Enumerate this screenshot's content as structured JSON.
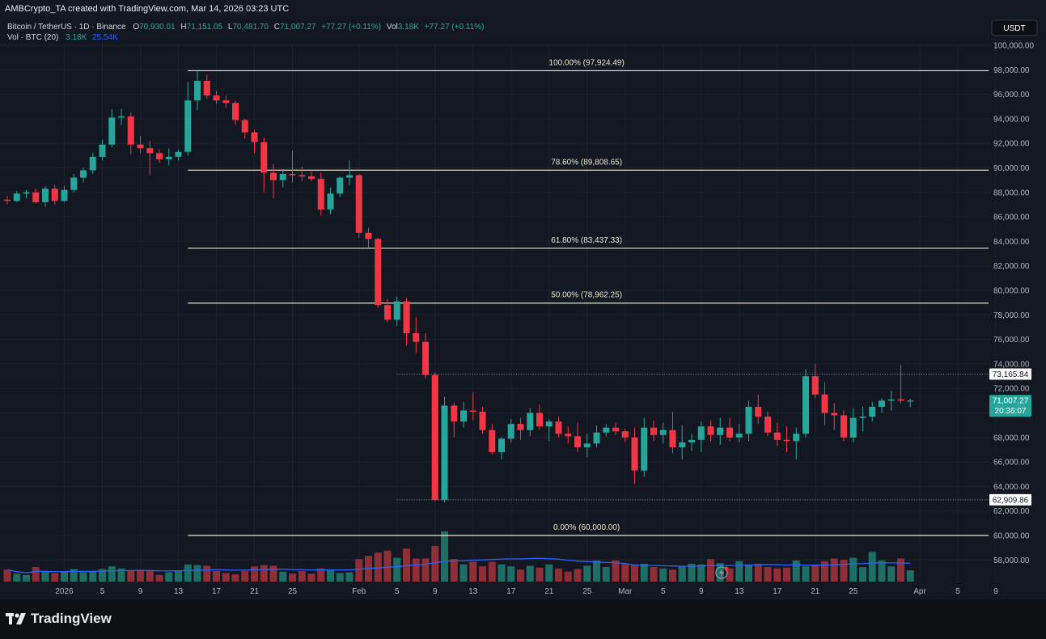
{
  "header": {
    "caption": "AMBCrypto_TA created with TradingView.com, Mar 14, 2026 03:23 UTC"
  },
  "legend": {
    "symbol": "Bitcoin / TetherUS · 1D · Binance",
    "open_label": "O",
    "open": "70,930.01",
    "high_label": "H",
    "high": "71,151.05",
    "low_label": "L",
    "low": "70,481.70",
    "close_label": "C",
    "close": "71,007.27",
    "change": "+77.27 (+0.11%)",
    "vol_label": "Vol",
    "vol": "3.18K",
    "vol_change": "+77.27 (+0.11%)",
    "vol_row_name": "Vol · BTC (20)",
    "vol_row_v1": "3.18K",
    "vol_row_v2": "25.54K"
  },
  "currency_button": "USDT",
  "brand": "TradingView",
  "colors": {
    "up": "#26a69a",
    "down": "#f23645",
    "vol_up": "#1f6e66",
    "vol_down": "#8e2f38",
    "fib": "#e8e4c9",
    "ma": "#2962ff",
    "bg": "#131722",
    "grid": "#1e222d"
  },
  "price_badges": {
    "high_marker": "73,165.84",
    "last_price": "71,007.27",
    "countdown": "20:36:07",
    "low_marker": "62,909.86"
  },
  "chart_data": {
    "type": "candlestick",
    "y_range": [
      56000,
      101000
    ],
    "y_ticks": [
      58000,
      60000,
      62000,
      64000,
      66000,
      68000,
      70000,
      72000,
      74000,
      76000,
      78000,
      80000,
      82000,
      84000,
      86000,
      88000,
      90000,
      92000,
      94000,
      96000,
      98000,
      100000
    ],
    "y_tick_labels": [
      "58,000.00",
      "60,000.00",
      "62,000.00",
      "64,000.00",
      "66,000.00",
      "68,000.00",
      "70,000.00",
      "72,000.00",
      "74,000.00",
      "76,000.00",
      "78,000.00",
      "80,000.00",
      "82,000.00",
      "84,000.00",
      "86,000.00",
      "88,000.00",
      "90,000.00",
      "92,000.00",
      "94,000.00",
      "96,000.00",
      "98,000.00",
      "100,000.00"
    ],
    "x_start_date": "2025-12-26",
    "x_days": 96,
    "x_ticks": [
      {
        "day": 6,
        "label": "2026"
      },
      {
        "day": 10,
        "label": "5"
      },
      {
        "day": 14,
        "label": "9"
      },
      {
        "day": 18,
        "label": "13"
      },
      {
        "day": 22,
        "label": "17"
      },
      {
        "day": 26,
        "label": "21"
      },
      {
        "day": 30,
        "label": "25"
      },
      {
        "day": 37,
        "label": "Feb"
      },
      {
        "day": 41,
        "label": "5"
      },
      {
        "day": 45,
        "label": "9"
      },
      {
        "day": 49,
        "label": "13"
      },
      {
        "day": 53,
        "label": "17"
      },
      {
        "day": 57,
        "label": "21"
      },
      {
        "day": 61,
        "label": "25"
      },
      {
        "day": 65,
        "label": "Mar"
      },
      {
        "day": 69,
        "label": "5"
      },
      {
        "day": 73,
        "label": "9"
      },
      {
        "day": 77,
        "label": "13"
      },
      {
        "day": 81,
        "label": "17"
      },
      {
        "day": 85,
        "label": "21"
      },
      {
        "day": 89,
        "label": "25"
      },
      {
        "day": 96,
        "label": "Apr"
      },
      {
        "day": 100,
        "label": "5"
      },
      {
        "day": 104,
        "label": "9"
      }
    ],
    "fib_levels": [
      {
        "label": "100.00% (97,924.49)",
        "price": 97924.49
      },
      {
        "label": "78.60% (89,808.65)",
        "price": 89808.65
      },
      {
        "label": "61.80% (83,437.33)",
        "price": 83437.33
      },
      {
        "label": "50.00% (78,962.25)",
        "price": 78962.25
      },
      {
        "label": "0.00% (60,000.00)",
        "price": 60000
      }
    ],
    "fib_start_day": 19,
    "high_marker_price": 73165.84,
    "low_marker_price": 62909.86,
    "marker_start_day": 41,
    "vol_max": 7.6,
    "candles": [
      [
        87400,
        87700,
        87000,
        87300,
        1.8
      ],
      [
        87300,
        88100,
        87200,
        87900,
        1.2
      ],
      [
        87900,
        88200,
        87500,
        88000,
        1.0
      ],
      [
        88000,
        88300,
        87100,
        87200,
        2.2
      ],
      [
        87200,
        88500,
        86800,
        88300,
        1.6
      ],
      [
        88300,
        88600,
        87000,
        87300,
        1.3
      ],
      [
        87300,
        88500,
        87200,
        88200,
        1.5
      ],
      [
        88200,
        89500,
        88000,
        89200,
        1.9
      ],
      [
        89200,
        90000,
        88800,
        89800,
        1.4
      ],
      [
        89800,
        91200,
        89500,
        90900,
        1.6
      ],
      [
        90900,
        92300,
        90600,
        91900,
        1.9
      ],
      [
        91900,
        94800,
        91700,
        94100,
        2.3
      ],
      [
        94100,
        94800,
        93500,
        94200,
        2.0
      ],
      [
        94200,
        94500,
        91100,
        91900,
        1.6
      ],
      [
        91900,
        92600,
        91200,
        91600,
        1.8
      ],
      [
        91600,
        92200,
        89400,
        91200,
        1.7
      ],
      [
        91200,
        91500,
        90400,
        90700,
        1.0
      ],
      [
        90700,
        91600,
        90200,
        90900,
        1.4
      ],
      [
        90900,
        91500,
        90600,
        91300,
        1.7
      ],
      [
        91300,
        97000,
        91000,
        95500,
        2.6
      ],
      [
        95500,
        98000,
        94700,
        97100,
        2.5
      ],
      [
        97100,
        97600,
        95600,
        95900,
        2.4
      ],
      [
        95900,
        96300,
        95200,
        95500,
        1.6
      ],
      [
        95500,
        95900,
        94900,
        95300,
        1.3
      ],
      [
        95300,
        95500,
        93500,
        93900,
        1.1
      ],
      [
        93900,
        94000,
        92400,
        92900,
        1.6
      ],
      [
        92900,
        93100,
        91200,
        92100,
        2.3
      ],
      [
        92100,
        92500,
        88000,
        89600,
        2.5
      ],
      [
        89600,
        90300,
        87500,
        89000,
        2.4
      ],
      [
        89000,
        89900,
        88400,
        89500,
        1.5
      ],
      [
        89500,
        91400,
        88800,
        89400,
        1.2
      ],
      [
        89400,
        90100,
        88900,
        89300,
        1.6
      ],
      [
        89300,
        89700,
        88900,
        89100,
        1.2
      ],
      [
        89100,
        89600,
        86100,
        86600,
        2.0
      ],
      [
        86600,
        88400,
        86200,
        87900,
        1.8
      ],
      [
        87900,
        89300,
        87600,
        89200,
        1.3
      ],
      [
        89200,
        90600,
        88600,
        89400,
        1.4
      ],
      [
        89400,
        89500,
        84300,
        84700,
        3.4
      ],
      [
        84700,
        85100,
        83500,
        84200,
        3.9
      ],
      [
        84200,
        84300,
        78600,
        78800,
        4.4
      ],
      [
        78800,
        79300,
        77400,
        77600,
        4.7
      ],
      [
        77600,
        79500,
        77100,
        79100,
        3.6
      ],
      [
        79100,
        79400,
        75500,
        76500,
        5.0
      ],
      [
        76500,
        77800,
        74900,
        75800,
        3.5
      ],
      [
        75800,
        76500,
        72800,
        73100,
        3.5
      ],
      [
        73100,
        73300,
        62800,
        62900,
        5.4
      ],
      [
        62900,
        71300,
        62700,
        70600,
        7.6
      ],
      [
        70600,
        70800,
        68000,
        69300,
        3.4
      ],
      [
        69300,
        70900,
        68800,
        70200,
        2.6
      ],
      [
        70200,
        71700,
        69400,
        70100,
        3.0
      ],
      [
        70100,
        70500,
        68300,
        68600,
        2.3
      ],
      [
        68600,
        69100,
        66600,
        66800,
        3.0
      ],
      [
        66800,
        68000,
        66200,
        67900,
        2.6
      ],
      [
        67900,
        69500,
        67600,
        69100,
        2.3
      ],
      [
        69100,
        69600,
        67800,
        68600,
        1.8
      ],
      [
        68600,
        70400,
        68100,
        70000,
        2.4
      ],
      [
        70000,
        70700,
        68600,
        68900,
        2.1
      ],
      [
        68900,
        69500,
        67700,
        69300,
        2.6
      ],
      [
        69300,
        69700,
        68000,
        68300,
        2.0
      ],
      [
        68300,
        68900,
        67500,
        68100,
        1.5
      ],
      [
        68100,
        69200,
        66800,
        67200,
        1.9
      ],
      [
        67200,
        68300,
        66400,
        67500,
        2.4
      ],
      [
        67500,
        69000,
        67200,
        68400,
        3.2
      ],
      [
        68400,
        69100,
        68100,
        68800,
        2.2
      ],
      [
        68800,
        69200,
        68200,
        68500,
        3.2
      ],
      [
        68500,
        68700,
        67600,
        68000,
        2.7
      ],
      [
        68000,
        68800,
        64200,
        65300,
        2.6
      ],
      [
        65300,
        69600,
        64800,
        68800,
        2.7
      ],
      [
        68800,
        69400,
        67700,
        68200,
        2.2
      ],
      [
        68200,
        69200,
        67500,
        68600,
        2.0
      ],
      [
        68600,
        70100,
        66700,
        67200,
        1.8
      ],
      [
        67200,
        69000,
        66200,
        67600,
        2.3
      ],
      [
        67600,
        68300,
        66900,
        67800,
        2.7
      ],
      [
        67800,
        69300,
        66800,
        68900,
        2.6
      ],
      [
        68900,
        69400,
        67700,
        68200,
        3.4
      ],
      [
        68200,
        69600,
        67400,
        68800,
        2.8
      ],
      [
        68800,
        69600,
        67700,
        68000,
        2.0
      ],
      [
        68000,
        69100,
        67600,
        68300,
        3.1
      ],
      [
        68300,
        71000,
        67700,
        70500,
        2.6
      ],
      [
        70500,
        71500,
        69100,
        69700,
        2.7
      ],
      [
        69700,
        70100,
        68100,
        68400,
        2.2
      ],
      [
        68400,
        69200,
        67300,
        67800,
        2.0
      ],
      [
        67800,
        68900,
        66800,
        67700,
        2.1
      ],
      [
        67700,
        68800,
        66200,
        68300,
        3.2
      ],
      [
        68300,
        73600,
        68000,
        73000,
        2.3
      ],
      [
        73000,
        74000,
        71200,
        71500,
        2.5
      ],
      [
        71500,
        72500,
        69000,
        70000,
        3.1
      ],
      [
        70000,
        70800,
        68600,
        69800,
        3.5
      ],
      [
        69800,
        70200,
        67700,
        68000,
        3.3
      ],
      [
        68000,
        70400,
        67600,
        69600,
        3.6
      ],
      [
        69600,
        70500,
        68500,
        69700,
        2.2
      ],
      [
        69700,
        70900,
        69300,
        70500,
        4.5
      ],
      [
        70500,
        71200,
        70000,
        71000,
        3.2
      ],
      [
        71000,
        71800,
        70200,
        71100,
        2.3
      ],
      [
        71100,
        73900,
        70800,
        71000,
        3.5
      ],
      [
        70930.01,
        71151.05,
        70481.7,
        71007.27,
        1.7
      ]
    ]
  }
}
